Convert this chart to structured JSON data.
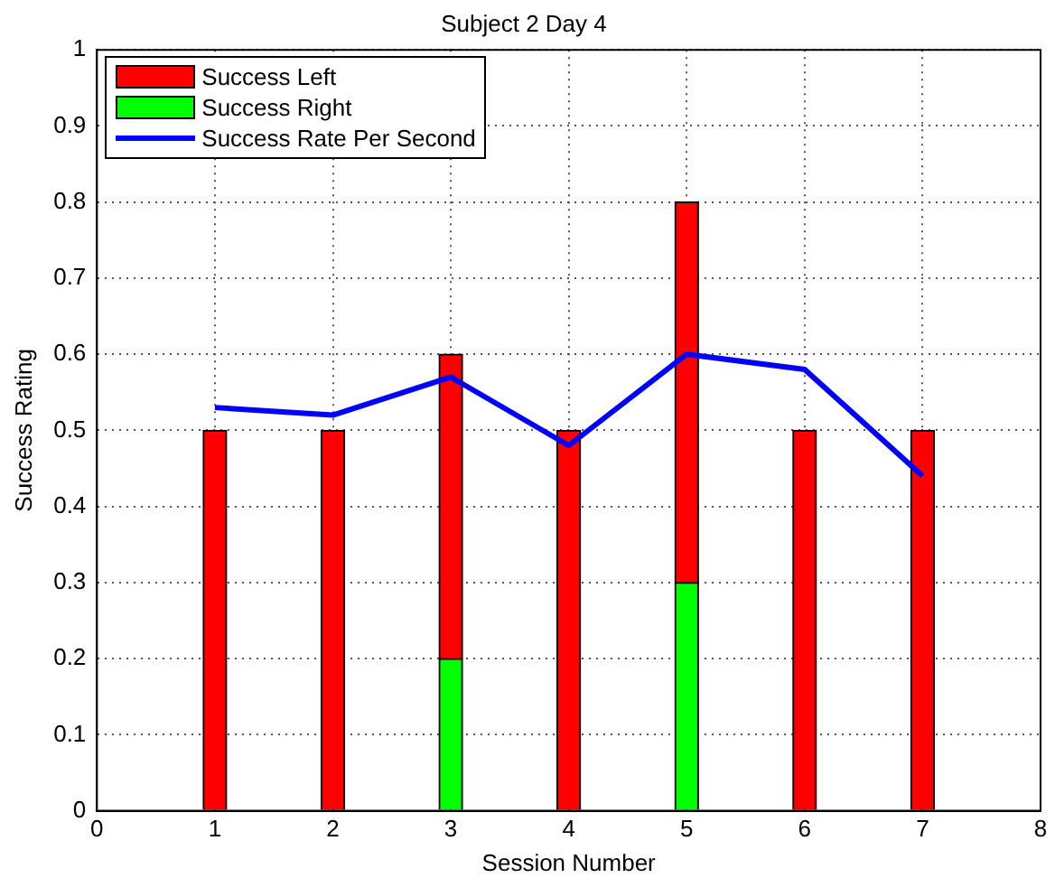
{
  "chart_data": {
    "type": "bar",
    "title": "Subject 2 Day 4",
    "xlabel": "Session Number",
    "ylabel": "Success Rating",
    "x": [
      1,
      2,
      3,
      4,
      5,
      6,
      7
    ],
    "stacked": true,
    "series": [
      {
        "name": "Success Right",
        "color": "#00ff00",
        "values": [
          null,
          null,
          0.2,
          null,
          0.3,
          null,
          null
        ]
      },
      {
        "name": "Success Left",
        "color": "#ff0000",
        "values": [
          0.5,
          0.5,
          0.4,
          0.5,
          0.5,
          0.5,
          0.5
        ]
      },
      {
        "name": "Success Rate Per Second",
        "type": "line",
        "color": "#0000ff",
        "values": [
          0.53,
          0.52,
          0.57,
          0.48,
          0.6,
          0.58,
          0.44
        ]
      }
    ],
    "xlim": [
      0,
      8
    ],
    "xticks": [
      0,
      1,
      2,
      3,
      4,
      5,
      6,
      7,
      8
    ],
    "ylim": [
      0,
      1
    ],
    "yticks": [
      0,
      0.1,
      0.2,
      0.3,
      0.4,
      0.5,
      0.6,
      0.7,
      0.8,
      0.9,
      1
    ],
    "grid": true,
    "legend": "top left",
    "marker": "none"
  }
}
